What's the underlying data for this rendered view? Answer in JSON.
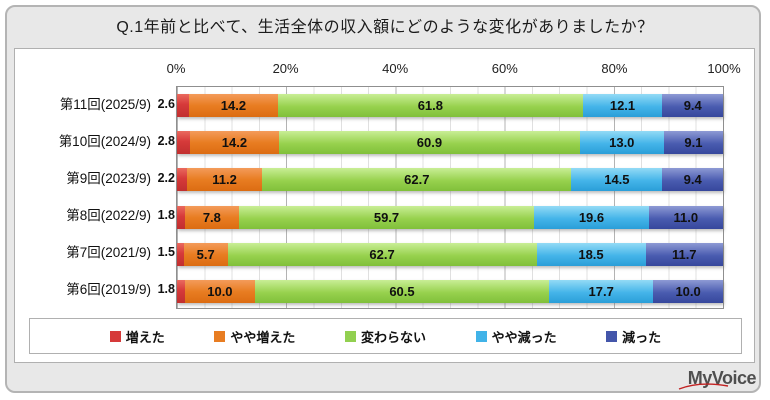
{
  "title": "Q.1年前と比べて、生活全体の収入額にどのような変化がありましたか？",
  "axis": {
    "ticks": [
      "0%",
      "20%",
      "40%",
      "60%",
      "80%",
      "100%"
    ]
  },
  "chart_data": {
    "type": "bar",
    "stacked": true,
    "orientation": "horizontal",
    "title": "Q.1年前と比べて、生活全体の収入額にどのような変化がありましたか？",
    "categories": [
      "第11回(2025/9)",
      "第10回(2024/9)",
      "第9回(2023/9)",
      "第8回(2022/9)",
      "第7回(2021/9)",
      "第6回(2019/9)"
    ],
    "series": [
      {
        "name": "増えた",
        "color": "#d63a3a",
        "values": [
          2.6,
          2.8,
          2.2,
          1.8,
          1.5,
          1.8
        ]
      },
      {
        "name": "やや増えた",
        "color": "#e87d22",
        "values": [
          14.2,
          14.2,
          11.2,
          7.8,
          5.7,
          10.0
        ]
      },
      {
        "name": "変わらない",
        "color": "#92d050",
        "values": [
          61.8,
          60.9,
          62.7,
          59.7,
          62.7,
          60.5
        ]
      },
      {
        "name": "やや減った",
        "color": "#41b3e8",
        "values": [
          12.1,
          13.0,
          14.5,
          19.6,
          18.5,
          17.7
        ]
      },
      {
        "name": "減った",
        "color": "#4456aa",
        "values": [
          9.4,
          9.1,
          9.4,
          11.0,
          11.7,
          10.0
        ]
      }
    ],
    "xlim": [
      0,
      100
    ],
    "tick_labels": [
      "0%",
      "20%",
      "40%",
      "60%",
      "80%",
      "100%"
    ],
    "grid": "minor 5% / major 20%",
    "legend_position": "bottom",
    "value_label_note": "first series labeled outside left of bars, others inside segments"
  },
  "logo": {
    "text": "MyVoice"
  }
}
